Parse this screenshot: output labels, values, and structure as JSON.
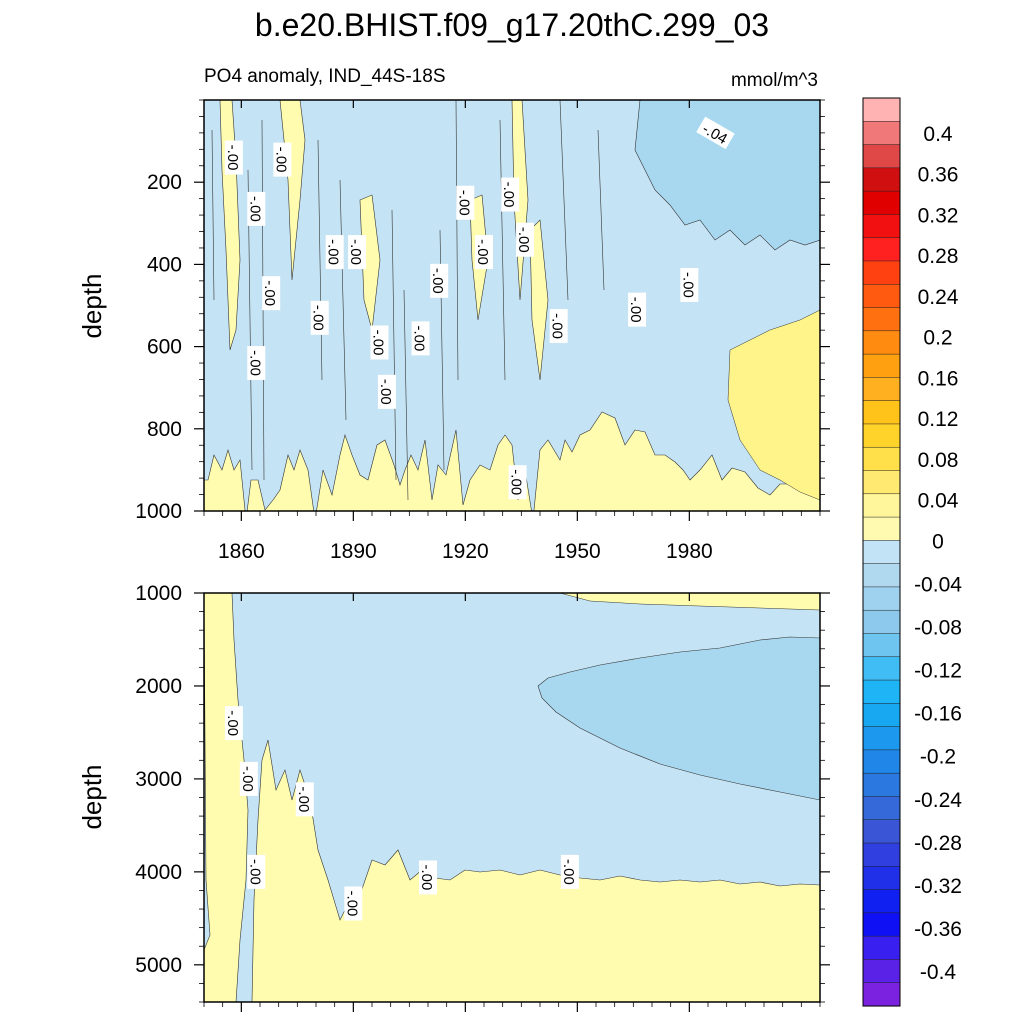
{
  "figure": {
    "title": "b.e20.BHIST.f09_g17.20thC.299_03",
    "subtitle_left": "PO4 anomaly, IND_44S-18S",
    "subtitle_right": "mmol/m^3"
  },
  "chart_data": [
    {
      "type": "contour",
      "panel": "upper",
      "ylabel": "depth",
      "xlim": [
        1850,
        2015
      ],
      "ylim": [
        0,
        1000
      ],
      "y_inverted": true,
      "x_ticks": [
        1860,
        1890,
        1920,
        1950,
        1980
      ],
      "y_ticks": [
        200,
        400,
        600,
        800,
        1000
      ],
      "contour_labels": [
        {
          "text": "-.00",
          "year": 1858,
          "depth": 140
        },
        {
          "text": "-.00",
          "year": 1864,
          "depth": 265
        },
        {
          "text": "-.00",
          "year": 1871,
          "depth": 145
        },
        {
          "text": "-.00",
          "year": 1868,
          "depth": 470
        },
        {
          "text": "-.00",
          "year": 1864,
          "depth": 640
        },
        {
          "text": "-.00",
          "year": 1885,
          "depth": 370
        },
        {
          "text": "-.00",
          "year": 1881,
          "depth": 530
        },
        {
          "text": "-.00",
          "year": 1891,
          "depth": 370
        },
        {
          "text": "-.00",
          "year": 1897,
          "depth": 590
        },
        {
          "text": "-.00",
          "year": 1899,
          "depth": 710
        },
        {
          "text": "-.00",
          "year": 1908,
          "depth": 580
        },
        {
          "text": "-.00",
          "year": 1913,
          "depth": 440
        },
        {
          "text": "-.00",
          "year": 1920,
          "depth": 250
        },
        {
          "text": "-.00",
          "year": 1925,
          "depth": 370
        },
        {
          "text": "-.00",
          "year": 1932,
          "depth": 230
        },
        {
          "text": "-.00",
          "year": 1936,
          "depth": 340
        },
        {
          "text": "-.00",
          "year": 1934,
          "depth": 930
        },
        {
          "text": "-.00",
          "year": 1945,
          "depth": 550
        },
        {
          "text": "-.00",
          "year": 1966,
          "depth": 510
        },
        {
          "text": "-.00",
          "year": 1980,
          "depth": 450
        },
        {
          "text": "-.04",
          "year": 1987,
          "depth": 80
        }
      ]
    },
    {
      "type": "contour",
      "panel": "lower",
      "ylabel": "depth",
      "xlim": [
        1850,
        2015
      ],
      "ylim": [
        1000,
        5400
      ],
      "y_inverted": true,
      "y_ticks": [
        1000,
        2000,
        3000,
        4000,
        5000
      ],
      "contour_labels": [
        {
          "text": "-.00",
          "year": 1858,
          "depth": 2400
        },
        {
          "text": "-.00",
          "year": 1862,
          "depth": 3000
        },
        {
          "text": "-.00",
          "year": 1877,
          "depth": 3220
        },
        {
          "text": "-.00",
          "year": 1864,
          "depth": 4000
        },
        {
          "text": "-.00",
          "year": 1890,
          "depth": 4340
        },
        {
          "text": "-.00",
          "year": 1910,
          "depth": 4060
        },
        {
          "text": "-.00",
          "year": 1948,
          "depth": 4000
        }
      ]
    }
  ],
  "colorbar": {
    "labels": [
      "0.4",
      "0.36",
      "0.32",
      "0.28",
      "0.24",
      "0.2",
      "0.16",
      "0.12",
      "0.08",
      "0.04",
      "0",
      "-0.04",
      "-0.08",
      "-0.12",
      "-0.16",
      "-0.2",
      "-0.24",
      "-0.28",
      "-0.32",
      "-0.36",
      "-0.4"
    ],
    "colors": [
      "#ffb3b3",
      "#f07878",
      "#e04848",
      "#d01010",
      "#e00000",
      "#f21010",
      "#ff2020",
      "#ff4010",
      "#ff5a10",
      "#ff7010",
      "#ff8c10",
      "#ffa010",
      "#ffb020",
      "#ffc31a",
      "#ffd32a",
      "#ffe04a",
      "#ffe970",
      "#fff59a",
      "#fffab0",
      "#c2e2f5",
      "#b0d9f0",
      "#9fd2ee",
      "#8cc9ec",
      "#6ec5f0",
      "#40bdf5",
      "#1eb4f5",
      "#18a8f2",
      "#1c98ee",
      "#2086e8",
      "#2a78e0",
      "#3568d8",
      "#3a55d5",
      "#3040e0",
      "#2030e8",
      "#1020f0",
      "#1010f5",
      "#3a20f0",
      "#5a22e6",
      "#7a22e0"
    ]
  }
}
